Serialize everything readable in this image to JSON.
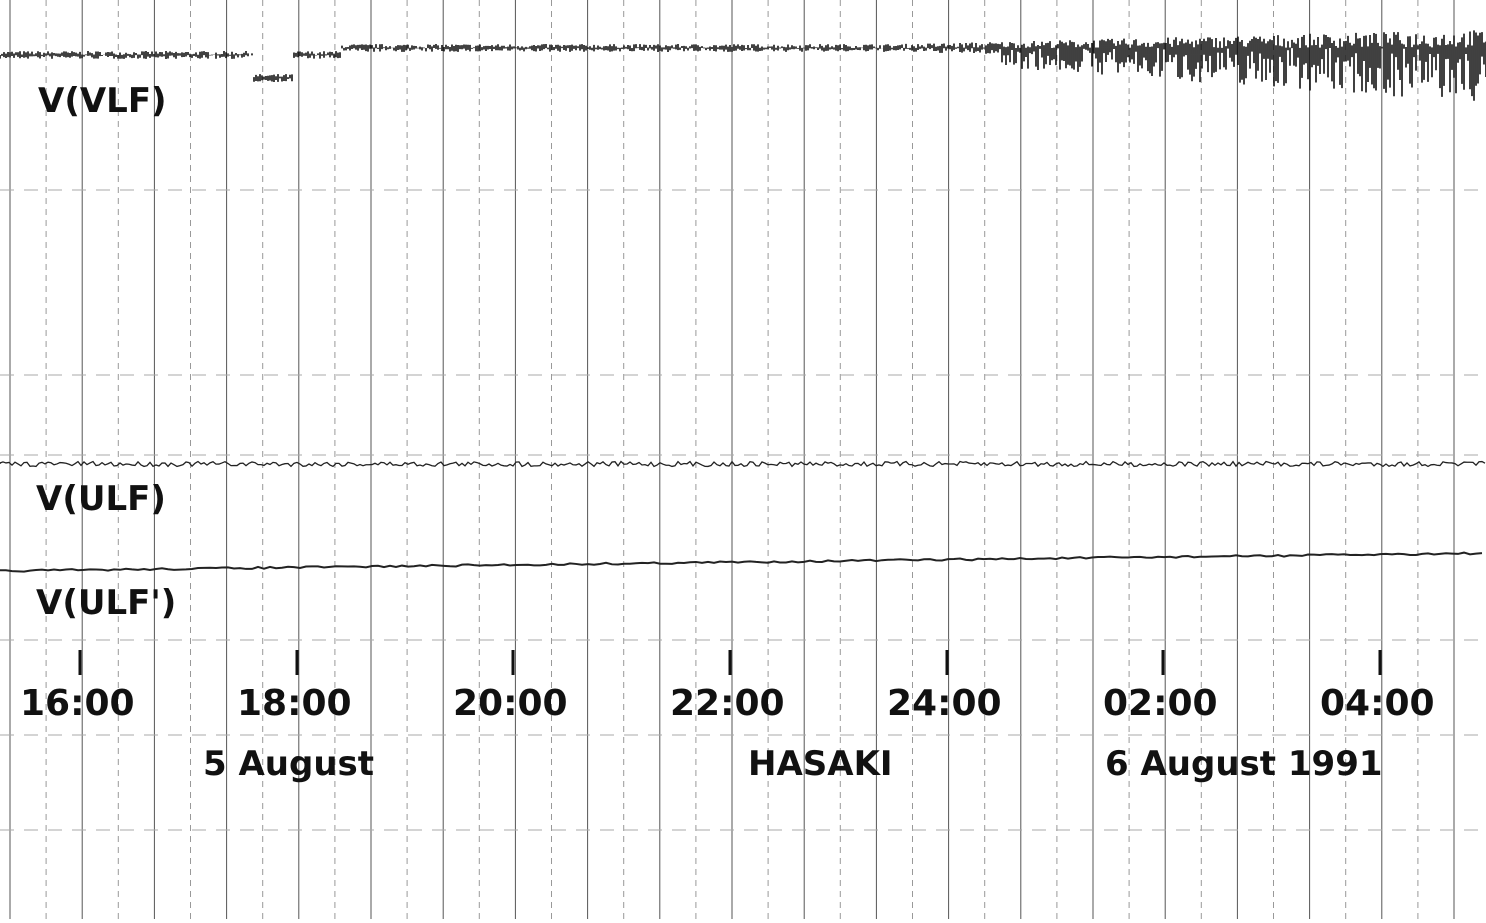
{
  "traces": [
    "V(VLF)",
    "V(ULF)",
    "V(ULF')"
  ],
  "time_labels": [
    "16:00",
    "18:00",
    "20:00",
    "22:00",
    "24:00",
    "02:00",
    "04:00"
  ],
  "footer": {
    "date_start": "5 August",
    "station": "HASAKI",
    "date_end": "6 August 1991"
  }
}
